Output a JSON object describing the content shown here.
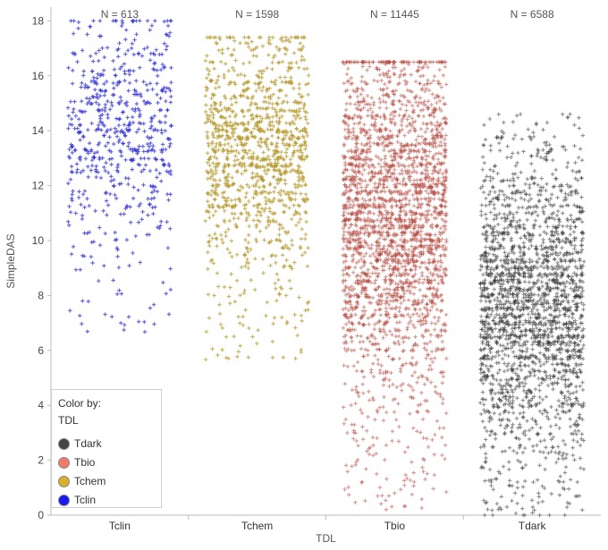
{
  "chart_data": {
    "type": "scatter",
    "title": "",
    "xlabel": "TDL",
    "ylabel": "SimpleDAS",
    "ylim": [
      0,
      18.5
    ],
    "yticks": [
      0,
      2,
      4,
      6,
      8,
      10,
      12,
      14,
      16,
      18
    ],
    "grid": false,
    "legend_placement": "bottom-left",
    "categories": [
      "Tclin",
      "Tchem",
      "Tbio",
      "Tdark"
    ],
    "counts": [
      "N = 613",
      "N = 1598",
      "N = 11445",
      "N = 6588"
    ],
    "series": [
      {
        "name": "Tclin",
        "color": "#2b2bd6",
        "n": 613,
        "range": [
          6.4,
          18.0
        ],
        "median": 14.2
      },
      {
        "name": "Tchem",
        "color": "#b59a2e",
        "n": 1598,
        "range": [
          5.6,
          17.4
        ],
        "median": 13.5
      },
      {
        "name": "Tbio",
        "color": "#b5453a",
        "n": 11445,
        "range": [
          0.2,
          16.5
        ],
        "median": 11.0
      },
      {
        "name": "Tdark",
        "color": "#333333",
        "n": 6588,
        "range": [
          0.0,
          14.6
        ],
        "median": 7.5
      }
    ]
  },
  "legend": {
    "title": "Color by:",
    "subtitle": "TDL",
    "items": [
      {
        "label": "Tdark",
        "color": "#444444"
      },
      {
        "label": "Tbio",
        "color": "#f07a6a"
      },
      {
        "label": "Tchem",
        "color": "#d8b02c"
      },
      {
        "label": "Tclin",
        "color": "#1a1af0"
      }
    ]
  }
}
